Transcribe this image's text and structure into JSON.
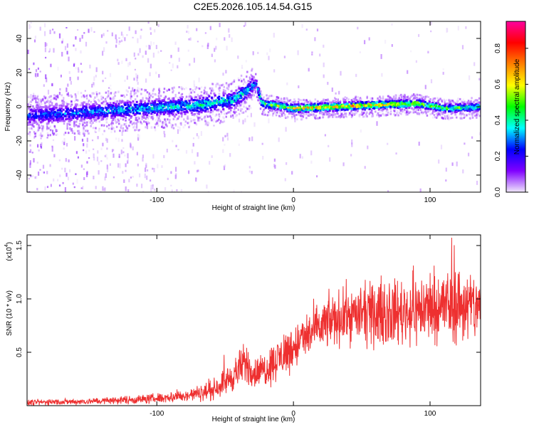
{
  "chart_data": [
    {
      "type": "heatmap",
      "title": "C2E5.2026.105.14.54.G15",
      "xlabel": "Height of straight line (km)",
      "ylabel": "Frequency (Hz)",
      "xlim": [
        -195,
        137
      ],
      "ylim": [
        -50,
        50
      ],
      "x_ticks": [
        -100,
        0,
        100
      ],
      "x_tick_labels": [
        "-100",
        "0",
        "100"
      ],
      "y_ticks": [
        -40,
        -20,
        0,
        20,
        40
      ],
      "y_tick_labels": [
        "-40",
        "-20",
        "0",
        "20",
        "40"
      ],
      "colorbar": {
        "label": "Normalized spectral amplitude",
        "range": [
          0,
          0.95
        ],
        "ticks": [
          0.0,
          0.2,
          0.4,
          0.6,
          0.8
        ],
        "tick_labels": [
          "0.0",
          "0.2",
          "0.4",
          "0.6",
          "0.8"
        ],
        "colors": [
          "#f0e8fc",
          "#8000ff",
          "#0000ff",
          "#00ffff",
          "#00ff00",
          "#ffff00",
          "#ff8000",
          "#ff0000",
          "#ff00a0"
        ]
      },
      "ridge": [
        {
          "x": -190,
          "freq": -5,
          "amp": 0.3
        },
        {
          "x": -150,
          "freq": -3,
          "amp": 0.35
        },
        {
          "x": -110,
          "freq": -1,
          "amp": 0.4
        },
        {
          "x": -70,
          "freq": 1,
          "amp": 0.45
        },
        {
          "x": -45,
          "freq": 4,
          "amp": 0.45
        },
        {
          "x": -35,
          "freq": 9,
          "amp": 0.4
        },
        {
          "x": -28,
          "freq": 14,
          "amp": 0.35
        },
        {
          "x": -24,
          "freq": 2,
          "amp": 0.55
        },
        {
          "x": 0,
          "freq": -1,
          "amp": 0.7
        },
        {
          "x": 30,
          "freq": 0,
          "amp": 0.75
        },
        {
          "x": 60,
          "freq": 1,
          "amp": 0.72
        },
        {
          "x": 90,
          "freq": 2,
          "amp": 0.65
        },
        {
          "x": 110,
          "freq": -1,
          "amp": 0.55
        },
        {
          "x": 137,
          "freq": 0,
          "amp": 0.5
        }
      ]
    },
    {
      "type": "line",
      "xlabel": "Height of straight line (km)",
      "ylabel": "SNR (10 * v/v)",
      "y_scale_label": "(x10",
      "y_scale_exponent": "4",
      "y_scale_suffix": ")",
      "xlim": [
        -195,
        137
      ],
      "ylim": [
        0,
        1.6
      ],
      "x_ticks": [
        -100,
        0,
        100
      ],
      "x_tick_labels": [
        "-100",
        "0",
        "100"
      ],
      "y_ticks": [
        0.5,
        1.0,
        1.5
      ],
      "y_tick_labels": [
        "0.5",
        "1.0",
        "1.5"
      ],
      "color": "#ee3030",
      "envelope": [
        {
          "x": -195,
          "mean": 0.03,
          "spread": 0.02
        },
        {
          "x": -150,
          "mean": 0.04,
          "spread": 0.02
        },
        {
          "x": -110,
          "mean": 0.06,
          "spread": 0.03
        },
        {
          "x": -80,
          "mean": 0.09,
          "spread": 0.04
        },
        {
          "x": -60,
          "mean": 0.14,
          "spread": 0.06
        },
        {
          "x": -45,
          "mean": 0.27,
          "spread": 0.1
        },
        {
          "x": -35,
          "mean": 0.4,
          "spread": 0.14
        },
        {
          "x": -28,
          "mean": 0.3,
          "spread": 0.1
        },
        {
          "x": -20,
          "mean": 0.35,
          "spread": 0.12
        },
        {
          "x": -5,
          "mean": 0.5,
          "spread": 0.15
        },
        {
          "x": 10,
          "mean": 0.65,
          "spread": 0.15
        },
        {
          "x": 25,
          "mean": 0.78,
          "spread": 0.17
        },
        {
          "x": 40,
          "mean": 0.85,
          "spread": 0.18
        },
        {
          "x": 60,
          "mean": 0.85,
          "spread": 0.2
        },
        {
          "x": 80,
          "mean": 0.88,
          "spread": 0.22
        },
        {
          "x": 100,
          "mean": 0.92,
          "spread": 0.24
        },
        {
          "x": 120,
          "mean": 0.95,
          "spread": 0.26
        },
        {
          "x": 137,
          "mean": 0.92,
          "spread": 0.22
        }
      ]
    }
  ]
}
